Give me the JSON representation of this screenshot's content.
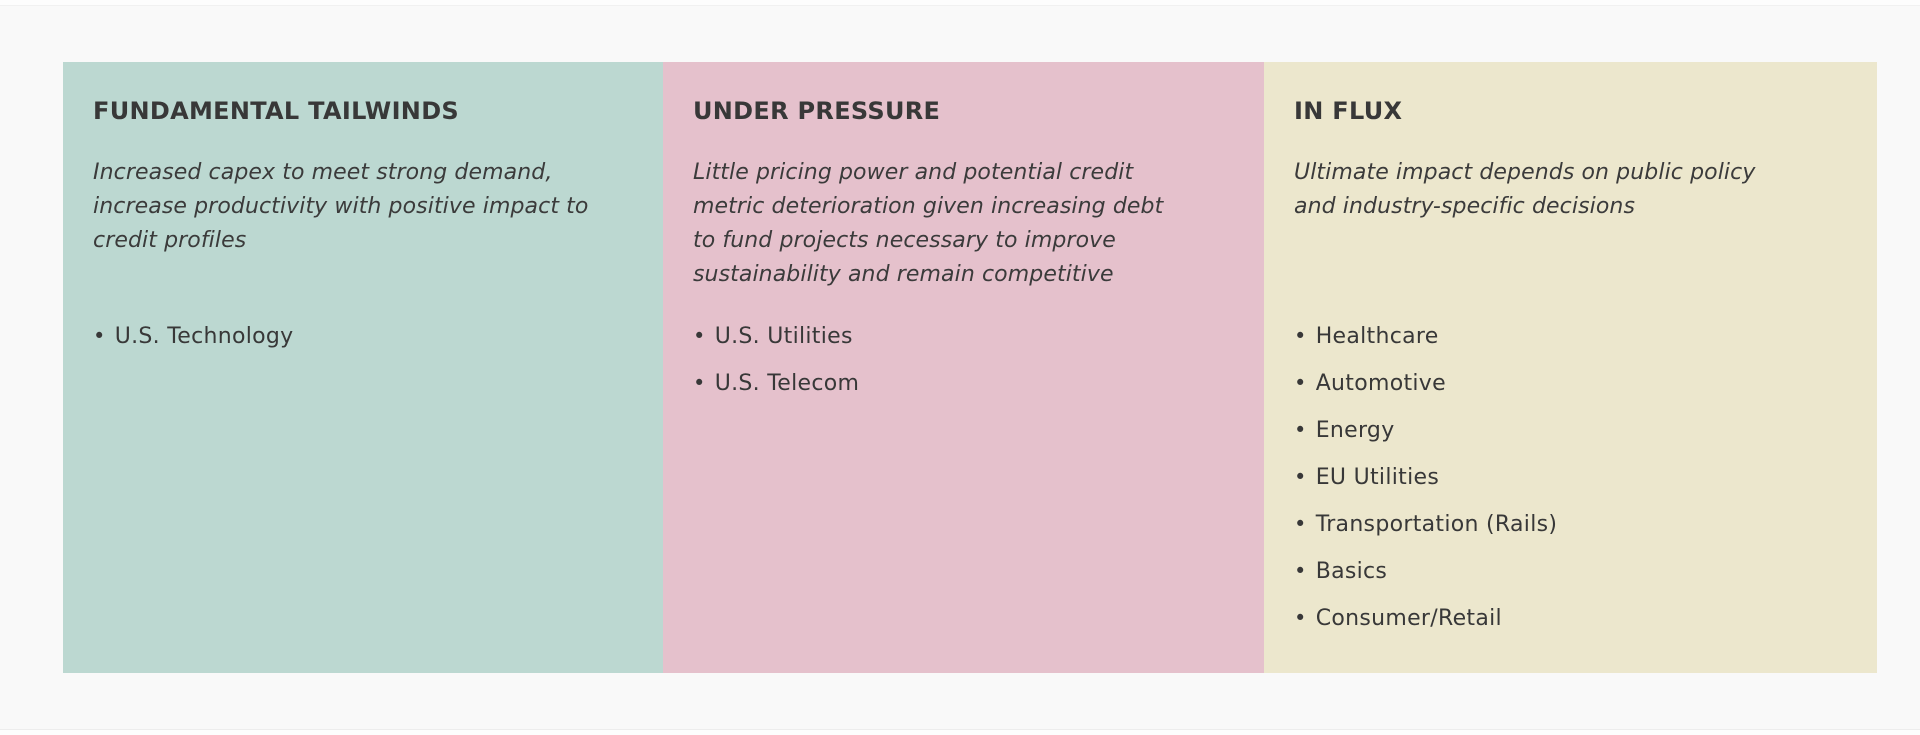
{
  "page": {
    "background_color": "#f9f9f9",
    "text_color": "#3a3a3a",
    "bullet_char": "•"
  },
  "panels": [
    {
      "title": "FUNDAMENTAL TAILWINDS",
      "description": "Increased capex to meet strong demand, increase productivity with positive impact to credit profiles",
      "items": [
        "U.S. Technology"
      ],
      "background_color": "#bcd8d1"
    },
    {
      "title": "UNDER PRESSURE",
      "description": "Little pricing power and potential credit metric deterioration given increasing debt to fund projects necessary to improve sustainability and remain competitive",
      "items": [
        "U.S. Utilities",
        "U.S. Telecom"
      ],
      "background_color": "#e5c1cc"
    },
    {
      "title": "IN FLUX",
      "description": "Ultimate impact depends on public policy and industry-specific decisions",
      "items": [
        "Healthcare",
        "Automotive",
        "Energy",
        "EU Utilities",
        "Transportation (Rails)",
        "Basics",
        "Consumer/Retail"
      ],
      "background_color": "#ece7cd"
    }
  ]
}
